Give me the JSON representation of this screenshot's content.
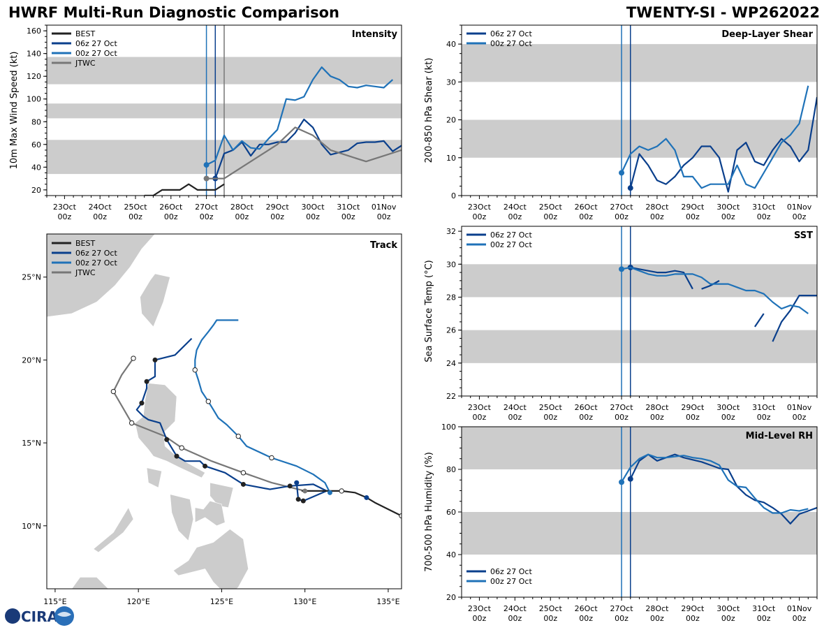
{
  "title": "HWRF Multi-Run Diagnostic Comparison",
  "storm_title": "TWENTY-SI - WP262022",
  "logo_text": "CIRA",
  "colors": {
    "best": "#222222",
    "run06": "#0a3f8c",
    "run00": "#1f72b8",
    "jtwc": "#777777",
    "band": "#cccccc",
    "land": "#cccccc"
  },
  "legend_labels": {
    "best": "BEST",
    "run06": "06z 27 Oct",
    "run00": "00z 27 Oct",
    "jtwc": "JTWC"
  },
  "time_axis": {
    "ticks": [
      {
        "t": 0,
        "line1": "23Oct",
        "line2": "00z"
      },
      {
        "t": 24,
        "line1": "24Oct",
        "line2": "00z"
      },
      {
        "t": 48,
        "line1": "25Oct",
        "line2": "00z"
      },
      {
        "t": 72,
        "line1": "26Oct",
        "line2": "00z"
      },
      {
        "t": 96,
        "line1": "27Oct",
        "line2": "00z"
      },
      {
        "t": 120,
        "line1": "28Oct",
        "line2": "00z"
      },
      {
        "t": 144,
        "line1": "29Oct",
        "line2": "00z"
      },
      {
        "t": 168,
        "line1": "30Oct",
        "line2": "00z"
      },
      {
        "t": 192,
        "line1": "31Oct",
        "line2": "00z"
      },
      {
        "t": 216,
        "line1": "01Nov",
        "line2": "00z"
      }
    ],
    "range": [
      -12,
      228
    ],
    "note": "hours since 23 Oct 00z"
  },
  "chart_data": [
    {
      "id": "intensity",
      "type": "line",
      "title": "Intensity",
      "ylabel": "10m Max Wind Speed (kt)",
      "ylim": [
        15,
        165
      ],
      "yticks": [
        20,
        40,
        60,
        80,
        100,
        120,
        140,
        160
      ],
      "bands": [
        [
          34,
          64
        ],
        [
          83,
          96
        ],
        [
          113,
          137
        ]
      ],
      "vlines": [
        {
          "t": 96,
          "series": "run00"
        },
        {
          "t": 102,
          "series": "run06"
        },
        {
          "t": 108,
          "series": "jtwc"
        }
      ],
      "legend": [
        "best",
        "run06",
        "run00",
        "jtwc"
      ],
      "series": [
        {
          "name": "BEST",
          "key": "best",
          "x": [
            54,
            60,
            66,
            72,
            78,
            84,
            90,
            96,
            102,
            108
          ],
          "values": [
            15,
            15,
            20,
            20,
            20,
            25,
            20,
            20,
            20,
            25
          ]
        },
        {
          "name": "06z 27 Oct",
          "key": "run06",
          "marker": 0,
          "x": [
            102,
            108,
            114,
            120,
            126,
            132,
            138,
            144,
            150,
            156,
            162,
            168,
            174,
            180,
            186,
            192,
            198,
            204,
            210,
            216,
            222,
            228
          ],
          "values": [
            30,
            52,
            55,
            62,
            50,
            60,
            60,
            62,
            62,
            70,
            82,
            75,
            60,
            51,
            53,
            55,
            61,
            62,
            62,
            63,
            54,
            59
          ]
        },
        {
          "name": "00z 27 Oct",
          "key": "run00",
          "marker": 0,
          "x": [
            96,
            102,
            108,
            114,
            120,
            126,
            132,
            138,
            144,
            150,
            156,
            162,
            168,
            174,
            180,
            186,
            192,
            198,
            204,
            210,
            216,
            222
          ],
          "values": [
            42,
            46,
            68,
            55,
            63,
            57,
            56,
            65,
            73,
            100,
            99,
            102,
            117,
            128,
            120,
            117,
            111,
            110,
            112,
            111,
            110,
            117
          ]
        },
        {
          "name": "JTWC",
          "key": "jtwc",
          "marker": 0,
          "x": [
            96,
            108,
            120,
            132,
            144,
            156,
            168,
            180,
            192,
            204,
            216,
            228
          ],
          "values": [
            30,
            30,
            40,
            50,
            60,
            75,
            68,
            55,
            50,
            45,
            50,
            55
          ]
        }
      ]
    },
    {
      "id": "shear",
      "type": "line",
      "title": "Deep-Layer Shear",
      "ylabel": "200-850 hPa Shear (kt)",
      "ylim": [
        0,
        45
      ],
      "yticks": [
        0,
        10,
        20,
        30,
        40
      ],
      "bands": [
        [
          10,
          20
        ],
        [
          30,
          40
        ]
      ],
      "vlines": [
        {
          "t": 96,
          "series": "run00"
        },
        {
          "t": 102,
          "series": "run06"
        }
      ],
      "legend": [
        "run06",
        "run00"
      ],
      "series": [
        {
          "name": "06z 27 Oct",
          "key": "run06",
          "marker": 0,
          "x": [
            102,
            108,
            114,
            120,
            126,
            132,
            138,
            144,
            150,
            156,
            162,
            168,
            174,
            180,
            186,
            192,
            198,
            204,
            210,
            216,
            222,
            228
          ],
          "values": [
            2,
            11,
            8,
            4,
            3,
            5,
            8,
            10,
            13,
            13,
            10,
            1,
            12,
            14,
            9,
            8,
            12,
            15,
            13,
            9,
            12,
            26
          ]
        },
        {
          "name": "00z 27 Oct",
          "key": "run00",
          "marker": 0,
          "x": [
            96,
            102,
            108,
            114,
            120,
            126,
            132,
            138,
            144,
            150,
            156,
            162,
            168,
            174,
            180,
            186,
            192,
            198,
            204,
            210,
            216,
            222
          ],
          "values": [
            6,
            11,
            13,
            12,
            13,
            15,
            12,
            5,
            5,
            2,
            3,
            3,
            3,
            8,
            3,
            2,
            6,
            10,
            14,
            16,
            19,
            29
          ]
        }
      ]
    },
    {
      "id": "sst",
      "type": "line",
      "title": "SST",
      "ylabel": "Sea Surface Temp (°C)",
      "ylim": [
        22,
        32.3
      ],
      "yticks": [
        22,
        24,
        26,
        28,
        30,
        32
      ],
      "bands": [
        [
          24,
          26
        ],
        [
          28,
          30
        ]
      ],
      "vlines": [
        {
          "t": 96,
          "series": "run00"
        },
        {
          "t": 102,
          "series": "run06"
        }
      ],
      "legend": [
        "run06",
        "run00"
      ],
      "series": [
        {
          "name": "06z 27 Oct",
          "key": "run06",
          "marker": 0,
          "x": [
            102,
            108,
            114,
            120,
            126,
            132,
            138,
            144
          ],
          "values": [
            29.8,
            29.7,
            29.6,
            29.5,
            29.5,
            29.6,
            29.5,
            28.5
          ]
        },
        {
          "name": "06z 27 Oct",
          "key": "run06",
          "x": [
            150,
            156,
            162
          ],
          "values": [
            28.5,
            28.7,
            29.0
          ]
        },
        {
          "name": "06z 27 Oct",
          "key": "run06",
          "x": [
            186,
            192
          ],
          "values": [
            26.2,
            27.0
          ]
        },
        {
          "name": "06z 27 Oct",
          "key": "run06",
          "x": [
            198,
            204,
            210,
            216,
            222,
            228
          ],
          "values": [
            25.3,
            26.5,
            27.2,
            28.1,
            28.1,
            28.1
          ]
        },
        {
          "name": "00z 27 Oct",
          "key": "run00",
          "marker": 0,
          "x": [
            96,
            102,
            108,
            114,
            120,
            126,
            132,
            138,
            144,
            150,
            156,
            162,
            168,
            174,
            180,
            186,
            192,
            198,
            204,
            210,
            216,
            222
          ],
          "values": [
            29.7,
            29.8,
            29.6,
            29.4,
            29.3,
            29.3,
            29.4,
            29.4,
            29.4,
            29.2,
            28.8,
            28.8,
            28.8,
            28.6,
            28.4,
            28.4,
            28.2,
            27.7,
            27.3,
            27.5,
            27.4,
            27.0
          ]
        }
      ]
    },
    {
      "id": "rh",
      "type": "line",
      "title": "Mid-Level RH",
      "ylabel": "700-500 hPa Humidity (%)",
      "ylim": [
        20,
        100
      ],
      "yticks": [
        20,
        40,
        60,
        80,
        100
      ],
      "bands": [
        [
          40,
          60
        ],
        [
          80,
          100
        ]
      ],
      "vlines": [
        {
          "t": 96,
          "series": "run00"
        },
        {
          "t": 102,
          "series": "run06"
        }
      ],
      "legend": [
        "run06",
        "run00"
      ],
      "legend_pos": "bottom-left",
      "series": [
        {
          "name": "06z 27 Oct",
          "key": "run06",
          "marker": 0,
          "x": [
            102,
            108,
            114,
            120,
            126,
            132,
            138,
            144,
            150,
            156,
            162,
            168,
            174,
            180,
            186,
            192,
            198,
            204,
            210,
            216,
            222,
            228
          ],
          "values": [
            75.5,
            84,
            87,
            84,
            85.5,
            87,
            85.5,
            84.5,
            83.5,
            82,
            80.5,
            80,
            72,
            68,
            65.5,
            64.5,
            62,
            59,
            54.5,
            59,
            60.5,
            62
          ]
        },
        {
          "name": "00z 27 Oct",
          "key": "run00",
          "marker": 0,
          "x": [
            96,
            102,
            108,
            114,
            120,
            126,
            132,
            138,
            144,
            150,
            156,
            162,
            168,
            174,
            180,
            186,
            192,
            198,
            204,
            210,
            216,
            222
          ],
          "values": [
            74,
            81,
            85,
            87,
            85.5,
            85.5,
            86,
            86.5,
            85.5,
            85,
            84,
            82,
            75,
            72,
            71.5,
            66.5,
            62,
            59.5,
            59.5,
            61,
            60.5,
            61.5
          ]
        }
      ]
    },
    {
      "id": "track",
      "type": "scatter",
      "title": "Track",
      "xlim": [
        114.5,
        135.8
      ],
      "ylim": [
        6.2,
        27.6
      ],
      "xticks": [
        {
          "v": 115,
          "label": "115°E"
        },
        {
          "v": 120,
          "label": "120°E"
        },
        {
          "v": 125,
          "label": "125°E"
        },
        {
          "v": 130,
          "label": "130°E"
        },
        {
          "v": 135,
          "label": "135°E"
        }
      ],
      "yticks": [
        {
          "v": 10,
          "label": "10°N"
        },
        {
          "v": 15,
          "label": "15°N"
        },
        {
          "v": 20,
          "label": "20°N"
        },
        {
          "v": 25,
          "label": "25°N"
        }
      ],
      "legend": [
        "best",
        "run06",
        "run00",
        "jtwc"
      ],
      "series": [
        {
          "name": "BEST",
          "key": "best",
          "lon": [
            135.8,
            135.0,
            134.2,
            133.7,
            133.0,
            132.2,
            131.3,
            130.3,
            129.8
          ],
          "lat": [
            10.6,
            11.0,
            11.4,
            11.7,
            12.0,
            12.1,
            12.1,
            12.1,
            12.1
          ],
          "open": [
            0,
            5
          ],
          "filled": [
            3
          ],
          "filled_color_key": "run06"
        },
        {
          "name": "06z 27 Oct",
          "key": "run06",
          "lon": [
            129.5,
            129.6,
            129.9,
            131.3,
            130.5,
            129.1,
            127.9,
            126.3,
            125.2,
            124.0,
            123.7,
            122.8,
            122.3,
            121.7,
            121.3,
            120.6,
            120.3,
            119.9,
            120.2,
            120.5,
            120.5,
            121.0,
            121.0,
            122.2,
            123.2
          ],
          "lat": [
            12.6,
            11.6,
            11.5,
            12.1,
            12.5,
            12.4,
            12.2,
            12.5,
            13.2,
            13.6,
            13.9,
            13.9,
            14.2,
            15.2,
            16.2,
            16.4,
            16.6,
            17.0,
            17.4,
            18.3,
            18.7,
            19.0,
            20.0,
            20.3,
            21.3
          ],
          "filled": [
            1,
            2,
            5,
            7,
            9,
            12,
            13,
            18,
            20
          ],
          "filled_alt": [
            0,
            22
          ]
        },
        {
          "name": "00z 27 Oct",
          "key": "run00",
          "lon": [
            131.5,
            131.2,
            130.5,
            129.5,
            128.0,
            126.5,
            126.0,
            125.3,
            124.8,
            124.5,
            124.2,
            123.8,
            123.6,
            123.4,
            123.4,
            123.5,
            123.8,
            124.2,
            124.5,
            124.7,
            124.9,
            125.3,
            126.0
          ],
          "lat": [
            12.0,
            12.6,
            13.1,
            13.6,
            14.1,
            14.8,
            15.4,
            16.1,
            16.5,
            17.0,
            17.5,
            18.1,
            18.8,
            19.4,
            20.0,
            20.6,
            21.2,
            21.7,
            22.1,
            22.4,
            22.4,
            22.4,
            22.4
          ],
          "filled": [
            0
          ],
          "open": [
            4,
            6,
            10,
            13
          ]
        },
        {
          "name": "JTWC",
          "key": "jtwc",
          "lon": [
            130.0,
            128.0,
            126.3,
            124.4,
            122.6,
            121.6,
            119.6,
            118.5,
            119.0,
            119.7
          ],
          "lat": [
            12.1,
            12.6,
            13.2,
            13.9,
            14.7,
            15.4,
            16.2,
            18.1,
            19.1,
            20.1
          ],
          "open": [
            2,
            4,
            6,
            7,
            9
          ],
          "filled": [
            0
          ]
        }
      ],
      "labels": {
        "fig_title": "Track"
      }
    }
  ]
}
